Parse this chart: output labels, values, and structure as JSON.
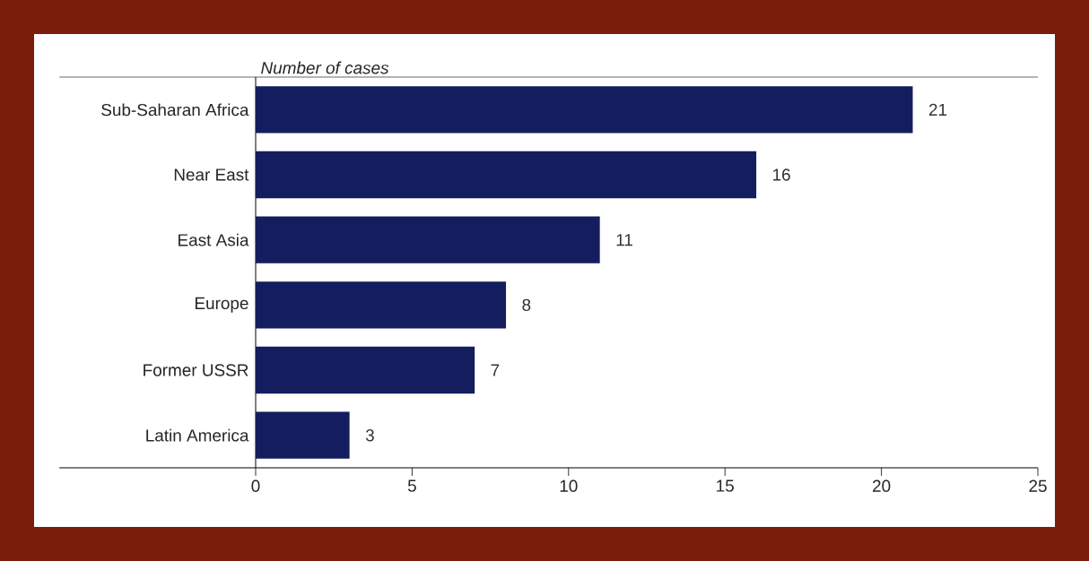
{
  "chart_data": {
    "type": "bar",
    "orientation": "horizontal",
    "xlabel": "Number of cases",
    "categories": [
      "Sub-Saharan Africa",
      "Near East",
      "East Asia",
      "Europe",
      "Former USSR",
      "Latin America"
    ],
    "values": [
      21,
      16,
      11,
      8,
      7,
      3
    ],
    "color": "#141d5e",
    "xlim": [
      0,
      25
    ],
    "xticks": [
      0,
      5,
      10,
      15,
      20,
      25
    ],
    "data_labels": true
  }
}
